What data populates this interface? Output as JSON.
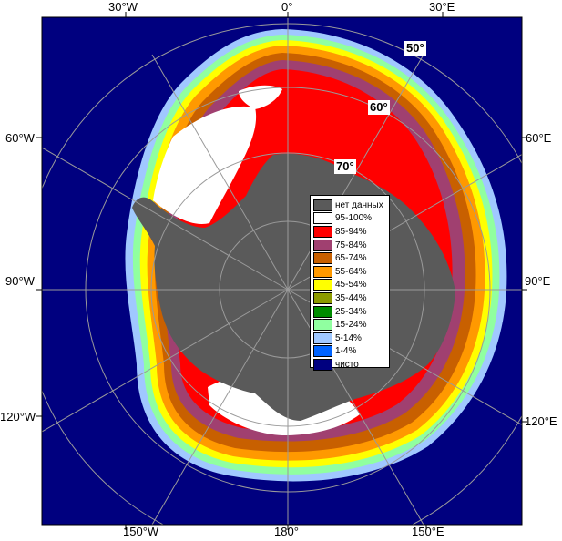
{
  "map": {
    "longitude_labels": {
      "top": [
        "30°W",
        "0°",
        "30°E"
      ],
      "left": [
        "60°W",
        "90°W",
        "120°W"
      ],
      "right": [
        "60°E",
        "90°E",
        "120°E"
      ],
      "bottom": [
        "150°W",
        "180°",
        "150°E"
      ]
    },
    "latitude_labels": [
      "50°",
      "60°",
      "70°"
    ],
    "colors": {
      "land": "#5a5a5a",
      "open_water": "#00007f",
      "frame": "#000000",
      "grid": "#9a9a9a"
    }
  },
  "legend": {
    "items": [
      {
        "label": "нет данных",
        "color": "#5a5a5a"
      },
      {
        "label": "95-100%",
        "color": "#ffffff"
      },
      {
        "label": "85-94%",
        "color": "#ff0000"
      },
      {
        "label": "75-84%",
        "color": "#a04070"
      },
      {
        "label": "65-74%",
        "color": "#c86000"
      },
      {
        "label": "55-64%",
        "color": "#ff9900"
      },
      {
        "label": "45-54%",
        "color": "#ffff00"
      },
      {
        "label": "35-44%",
        "color": "#8c9a00"
      },
      {
        "label": "25-34%",
        "color": "#008c00"
      },
      {
        "label": "15-24%",
        "color": "#90ffa0"
      },
      {
        "label": "5-14%",
        "color": "#a0c8ff"
      },
      {
        "label": "1-4%",
        "color": "#0064ff"
      },
      {
        "label": "чисто",
        "color": "#00007f"
      }
    ]
  }
}
